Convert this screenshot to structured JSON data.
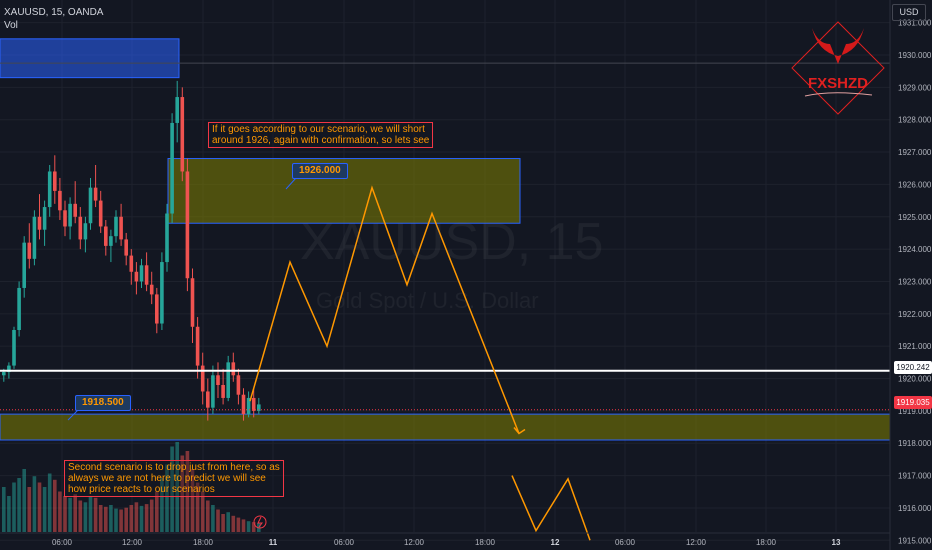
{
  "header": {
    "title": "XAUUSD, 15, OANDA",
    "sub": "Vol"
  },
  "currency_button": "USD",
  "watermark": {
    "symbol": "XAUUSD, 15",
    "desc": "Gold Spot / U.S. Dollar"
  },
  "logo": {
    "text": "FXSHZD"
  },
  "notes": {
    "top_line1": "If it goes according to our scenario, we will short",
    "top_line2": "around 1926, again with confirmation, so lets see",
    "bottom_line1": "Second scenario is to drop just from here, so as",
    "bottom_line2": "always we are not here to predict we will see",
    "bottom_line3": "how price reacts to our scenarios"
  },
  "callouts": {
    "upper": "1926.000",
    "lower": "1918.500"
  },
  "price_labels": {
    "last_line": "1920.242",
    "current": "1919.035"
  },
  "chart_data": {
    "type": "candlestick",
    "y_axis": {
      "min": 1914.7,
      "max": 1931.7,
      "ticks": [
        1931,
        1930,
        1929,
        1928,
        1927,
        1926,
        1925,
        1924,
        1923,
        1922,
        1921,
        1920,
        1919,
        1918,
        1917,
        1916,
        1915
      ],
      "tick_labels": [
        "1931.000",
        "1930.000",
        "1929.000",
        "1928.000",
        "1927.000",
        "1926.000",
        "1925.000",
        "1924.000",
        "1923.000",
        "1922.000",
        "1921.000",
        "1920.000",
        "1919.000",
        "1918.000",
        "1917.000",
        "1916.000",
        "1915.000"
      ]
    },
    "x_axis": {
      "tick_labels": [
        "06:00",
        "12:00",
        "18:00",
        "11",
        "06:00",
        "12:00",
        "18:00",
        "12",
        "06:00",
        "12:00",
        "18:00",
        "13"
      ]
    },
    "horizontal_line": 1920.242,
    "current_price": 1919.035,
    "zones": [
      {
        "name": "upper-zone",
        "from": 1926.8,
        "to": 1924.8,
        "style": "olive"
      },
      {
        "name": "lower-zone",
        "from": 1918.9,
        "to": 1918.1,
        "style": "olive"
      },
      {
        "name": "top-left-zone",
        "from": 1930.5,
        "to": 1929.3,
        "style": "blue"
      }
    ],
    "projection_paths": [
      [
        [
          0,
          1919.3
        ],
        [
          1,
          1923.6
        ],
        [
          2,
          1921.0
        ],
        [
          3,
          1925.9
        ],
        [
          4,
          1922.9
        ],
        [
          5,
          1925.1
        ],
        [
          6,
          1918.3
        ]
      ],
      [
        [
          0,
          1917.0
        ],
        [
          1,
          1915.3
        ],
        [
          2,
          1916.9
        ],
        [
          3,
          1915.0
        ]
      ]
    ],
    "candles": [
      [
        1920.1,
        1920.3,
        1919.9,
        1920.2
      ],
      [
        1920.2,
        1920.5,
        1920.0,
        1920.4
      ],
      [
        1920.4,
        1921.6,
        1920.3,
        1921.5
      ],
      [
        1921.5,
        1923.0,
        1921.3,
        1922.8
      ],
      [
        1922.8,
        1924.4,
        1922.5,
        1924.2
      ],
      [
        1924.2,
        1924.8,
        1923.4,
        1923.7
      ],
      [
        1923.7,
        1925.2,
        1923.5,
        1925.0
      ],
      [
        1925.0,
        1925.7,
        1924.3,
        1924.6
      ],
      [
        1924.6,
        1925.5,
        1924.1,
        1925.3
      ],
      [
        1925.3,
        1926.6,
        1925.0,
        1926.4
      ],
      [
        1926.4,
        1926.9,
        1925.4,
        1925.8
      ],
      [
        1925.8,
        1926.2,
        1924.9,
        1925.2
      ],
      [
        1925.2,
        1925.5,
        1924.4,
        1924.7
      ],
      [
        1924.7,
        1925.6,
        1924.3,
        1925.4
      ],
      [
        1925.4,
        1926.1,
        1924.8,
        1925.0
      ],
      [
        1925.0,
        1925.3,
        1924.0,
        1924.3
      ],
      [
        1924.3,
        1925.0,
        1923.9,
        1924.8
      ],
      [
        1924.8,
        1926.2,
        1924.6,
        1925.9
      ],
      [
        1925.9,
        1926.6,
        1925.3,
        1925.5
      ],
      [
        1925.5,
        1925.8,
        1924.5,
        1924.7
      ],
      [
        1924.7,
        1924.9,
        1923.8,
        1924.1
      ],
      [
        1924.1,
        1924.6,
        1923.6,
        1924.4
      ],
      [
        1924.4,
        1925.2,
        1924.2,
        1925.0
      ],
      [
        1925.0,
        1925.4,
        1924.1,
        1924.3
      ],
      [
        1924.3,
        1924.5,
        1923.5,
        1923.8
      ],
      [
        1923.8,
        1924.0,
        1922.9,
        1923.3
      ],
      [
        1923.3,
        1923.6,
        1922.6,
        1923.0
      ],
      [
        1923.0,
        1923.7,
        1922.8,
        1923.5
      ],
      [
        1923.5,
        1923.9,
        1922.7,
        1922.9
      ],
      [
        1922.9,
        1923.3,
        1922.3,
        1922.6
      ],
      [
        1922.6,
        1922.8,
        1921.4,
        1921.7
      ],
      [
        1921.7,
        1923.9,
        1921.5,
        1923.6
      ],
      [
        1923.6,
        1925.4,
        1923.3,
        1925.1
      ],
      [
        1925.1,
        1928.2,
        1924.8,
        1927.9
      ],
      [
        1927.9,
        1929.2,
        1927.3,
        1928.7
      ],
      [
        1928.7,
        1929.0,
        1926.1,
        1926.4
      ],
      [
        1926.4,
        1926.8,
        1922.7,
        1923.1
      ],
      [
        1923.1,
        1923.4,
        1921.1,
        1921.6
      ],
      [
        1921.6,
        1921.9,
        1920.0,
        1920.4
      ],
      [
        1920.4,
        1920.8,
        1919.2,
        1919.6
      ],
      [
        1919.6,
        1920.0,
        1918.7,
        1919.1
      ],
      [
        1919.1,
        1920.4,
        1918.9,
        1920.1
      ],
      [
        1920.1,
        1920.5,
        1919.4,
        1919.8
      ],
      [
        1919.8,
        1920.3,
        1919.2,
        1919.4
      ],
      [
        1919.4,
        1920.7,
        1919.3,
        1920.5
      ],
      [
        1920.5,
        1920.8,
        1919.9,
        1920.1
      ],
      [
        1920.1,
        1920.3,
        1919.2,
        1919.5
      ],
      [
        1919.5,
        1919.7,
        1918.7,
        1918.9
      ],
      [
        1918.9,
        1919.6,
        1918.8,
        1919.4
      ],
      [
        1919.4,
        1919.7,
        1918.8,
        1919.0
      ],
      [
        1919.0,
        1919.4,
        1918.9,
        1919.2
      ]
    ],
    "volumes": [
      0.5,
      0.4,
      0.55,
      0.6,
      0.7,
      0.5,
      0.62,
      0.55,
      0.5,
      0.65,
      0.58,
      0.45,
      0.4,
      0.38,
      0.42,
      0.35,
      0.33,
      0.4,
      0.38,
      0.3,
      0.28,
      0.3,
      0.26,
      0.25,
      0.27,
      0.3,
      0.33,
      0.29,
      0.31,
      0.36,
      0.45,
      0.6,
      0.75,
      0.95,
      1.0,
      0.85,
      0.9,
      0.7,
      0.55,
      0.45,
      0.35,
      0.3,
      0.25,
      0.2,
      0.22,
      0.18,
      0.16,
      0.14,
      0.12,
      0.11,
      0.1
    ]
  }
}
